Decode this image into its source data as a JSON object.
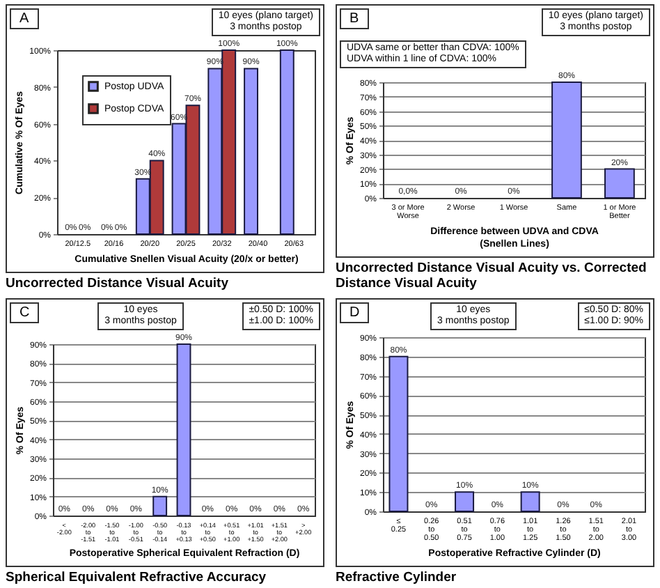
{
  "chart_data": [
    {
      "type": "bar",
      "title": "Uncorrected Distance Visual Acuity",
      "annotations": [
        "A",
        "10 eyes (plano target)\n3 months postop"
      ],
      "xlabel": "Cumulative Snellen Visual Acuity (20/x or better)",
      "ylabel": "Cumulative % Of Eyes",
      "categories": [
        "20/12.5",
        "20/16",
        "20/20",
        "20/25",
        "20/32",
        "20/40",
        "20/63"
      ],
      "series": [
        {
          "name": "Postop UDVA",
          "color": "#9999ff",
          "values": [
            0,
            0,
            30,
            60,
            90,
            90,
            100
          ],
          "value_labels": [
            "0%",
            "0%",
            "30%",
            "60%",
            "90%",
            "90%",
            "100%"
          ]
        },
        {
          "name": "Postop CDVA",
          "color": "#b03a3a",
          "values": [
            0,
            0,
            40,
            70,
            100,
            null,
            null
          ],
          "value_labels": [
            "0%",
            "0%",
            "40%",
            "70%",
            "100%",
            null,
            null
          ]
        }
      ],
      "ylim": [
        0,
        100
      ],
      "yticks": [
        {
          "value": 0,
          "label": "0%"
        },
        {
          "value": 20,
          "label": "20%"
        },
        {
          "value": 40,
          "label": "40%"
        },
        {
          "value": 60,
          "label": "60%"
        },
        {
          "value": 80,
          "label": "80%"
        },
        {
          "value": 100,
          "label": "100%"
        }
      ],
      "legend": "top left"
    },
    {
      "type": "bar",
      "title": "Uncorrected Distance Visual Acuity vs. Corrected Distance Visual Acuity",
      "annotations": [
        "B",
        "10 eyes (plano target)\n3 months postop",
        "UDVA same or better than CDVA: 100%\nUDVA within 1 line of CDVA: 100%"
      ],
      "xlabel": "Difference between  UDVA and CDVA\n(Snellen Lines)",
      "ylabel": "% Of Eyes",
      "categories": [
        "3 or More\nWorse",
        "2 Worse",
        "1 Worse",
        "Same",
        "1 or More\nBetter"
      ],
      "series": [
        {
          "color": "#9999ff",
          "values": [
            0,
            0,
            0,
            80,
            20
          ],
          "value_labels": [
            "0,0%",
            "0%",
            "0%",
            "80%",
            "20%"
          ]
        }
      ],
      "ylim": [
        0,
        80
      ],
      "yticks": [
        {
          "value": 0,
          "label": "0%"
        },
        {
          "value": 10,
          "label": "10%"
        },
        {
          "value": 20,
          "label": "20%"
        },
        {
          "value": 30,
          "label": "30%"
        },
        {
          "value": 40,
          "label": "40%"
        },
        {
          "value": 50,
          "label": "50%"
        },
        {
          "value": 60,
          "label": "60%"
        },
        {
          "value": 70,
          "label": "70%"
        },
        {
          "value": 80,
          "label": "80%"
        }
      ],
      "grid": "y"
    },
    {
      "type": "bar",
      "title": "Spherical Equivalent Refractive Accuracy",
      "annotations": [
        "C",
        "10 eyes\n3 months postop",
        "±0.50 D: 100%\n±1.00 D: 100%"
      ],
      "xlabel": "Postoperative Spherical Equivalent Refraction (D)",
      "ylabel": "% Of Eyes",
      "categories": [
        "<\n-2.00",
        "-2.00\nto\n-1.51",
        "-1.50\nto\n-1.01",
        "-1.00\nto\n-0.51",
        "-0.50\nto\n-0.14",
        "-0.13\nto\n+0.13",
        "+0.14\nto\n+0.50",
        "+0.51\nto\n+1.00",
        "+1.01\nto\n+1.50",
        "+1.51\nto\n+2.00",
        ">\n+2.00"
      ],
      "series": [
        {
          "color": "#9999ff",
          "values": [
            0,
            0,
            0,
            0,
            10,
            90,
            0,
            0,
            0,
            0,
            0
          ],
          "value_labels": [
            "0%",
            "0%",
            "0%",
            "0%",
            "10%",
            "90%",
            "0%",
            "0%",
            "0%",
            "0%",
            "0%"
          ]
        }
      ],
      "ylim": [
        0,
        90
      ],
      "yticks": [
        {
          "value": 0,
          "label": "0%"
        },
        {
          "value": 10,
          "label": "10%"
        },
        {
          "value": 20,
          "label": "20%"
        },
        {
          "value": 30,
          "label": "30%"
        },
        {
          "value": 40,
          "label": "40%"
        },
        {
          "value": 50,
          "label": "50%"
        },
        {
          "value": 60,
          "label": "60%"
        },
        {
          "value": 70,
          "label": "70%"
        },
        {
          "value": 80,
          "label": "80%"
        },
        {
          "value": 90,
          "label": "90%"
        }
      ],
      "grid": "y"
    },
    {
      "type": "bar",
      "title": "Refractive Cylinder",
      "annotations": [
        "D",
        "10 eyes\n3 months postop",
        "≤0.50 D: 80%\n≤1.00 D: 90%"
      ],
      "xlabel": "Postoperative Refractive Cylinder (D)",
      "ylabel": "% Of Eyes",
      "categories": [
        "≤\n0.25",
        "0.26\nto\n0.50",
        "0.51\nto\n0.75",
        "0.76\nto\n1.00",
        "1.01\nto\n1.25",
        "1.26\nto\n1.50",
        "1.51\nto\n2.00",
        "2.01\nto\n3.00"
      ],
      "series": [
        {
          "color": "#9999ff",
          "values": [
            80,
            0,
            10,
            0,
            10,
            0,
            0,
            0
          ],
          "value_labels": [
            "80%",
            "0%",
            "10%",
            "0%",
            "10%",
            "0%",
            "0%",
            null
          ]
        }
      ],
      "ylim": [
        0,
        90
      ],
      "yticks": [
        {
          "value": 0,
          "label": "0%"
        },
        {
          "value": 10,
          "label": "10%"
        },
        {
          "value": 20,
          "label": "20%"
        },
        {
          "value": 30,
          "label": "30%"
        },
        {
          "value": 40,
          "label": "40%"
        },
        {
          "value": 50,
          "label": "50%"
        },
        {
          "value": 60,
          "label": "60%"
        },
        {
          "value": 70,
          "label": "70%"
        },
        {
          "value": 80,
          "label": "80%"
        },
        {
          "value": 90,
          "label": "90%"
        }
      ],
      "grid": "y"
    }
  ]
}
